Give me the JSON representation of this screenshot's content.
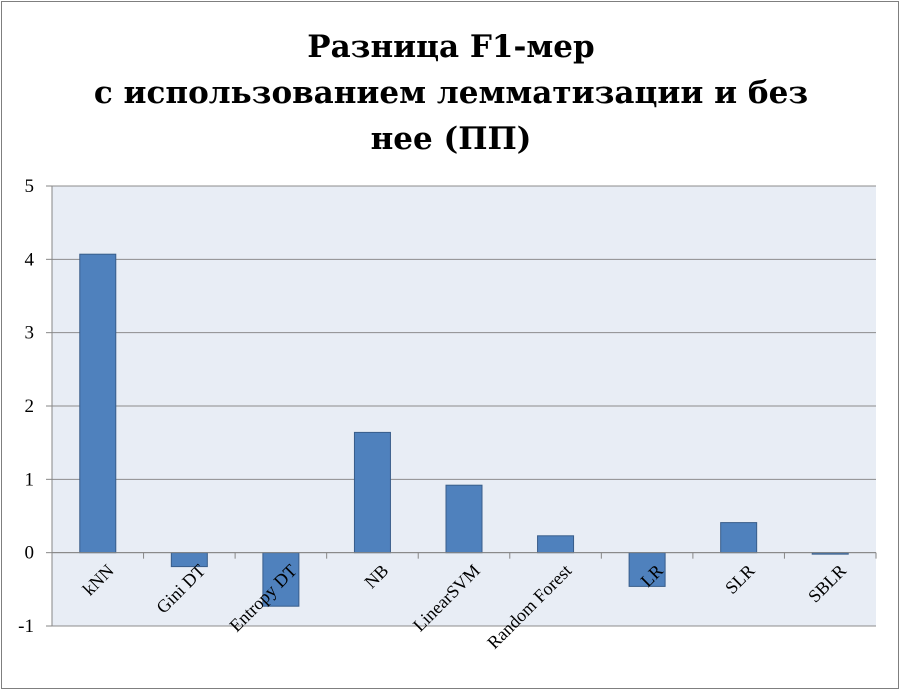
{
  "chart_data": {
    "type": "bar",
    "title_lines": [
      "Разница F1-мер",
      "с использованием лемматизации и без",
      "нее (ПП)"
    ],
    "categories": [
      "kNN",
      "Gini DT",
      "Entropy DT",
      "NB",
      "LinearSVM",
      "Random Forest",
      "LR",
      "SLR",
      "SBLR"
    ],
    "values": [
      4.07,
      -0.19,
      -0.73,
      1.64,
      0.92,
      0.23,
      -0.46,
      0.41,
      -0.02
    ],
    "ylim": [
      -1,
      5
    ],
    "yticks": [
      "-1",
      "0",
      "1",
      "2",
      "3",
      "4",
      "5"
    ],
    "grid": true,
    "legend": "none",
    "colors": {
      "bar_fill": "#4f81bd",
      "bar_stroke": "#385d8a",
      "plot_bg": "#e8edf5",
      "grid": "#8c8c8c",
      "axis": "#868686"
    }
  }
}
